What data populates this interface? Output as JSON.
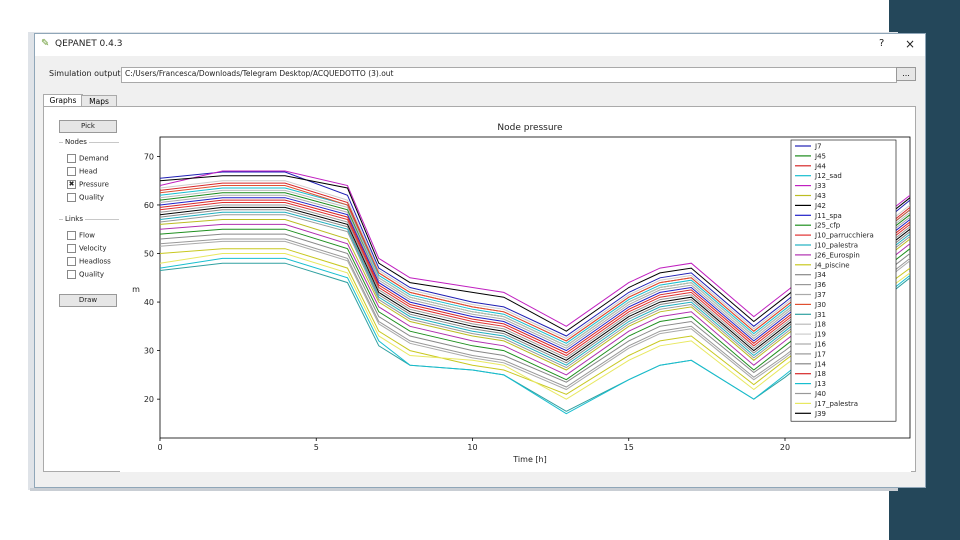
{
  "window": {
    "title": "QEPANET 0.4.3",
    "help_label": "?",
    "close_label": "×"
  },
  "output_file": {
    "label": "Simulation output file:",
    "value": "C:/Users/Francesca/Downloads/Telegram Desktop/ACQUEDOTTO (3).out",
    "browse_label": "..."
  },
  "tabs": [
    {
      "label": "Graphs"
    },
    {
      "label": "Maps"
    }
  ],
  "left_panel": {
    "pick_label": "Pick",
    "nodes_label": "Nodes",
    "node_options": [
      {
        "label": "Demand",
        "checked": false
      },
      {
        "label": "Head",
        "checked": false
      },
      {
        "label": "Pressure",
        "checked": true
      },
      {
        "label": "Quality",
        "checked": false
      }
    ],
    "links_label": "Links",
    "link_options": [
      {
        "label": "Flow",
        "checked": false
      },
      {
        "label": "Velocity",
        "checked": false
      },
      {
        "label": "Headloss",
        "checked": false
      },
      {
        "label": "Quality",
        "checked": false
      }
    ],
    "draw_label": "Draw"
  },
  "chart_data": {
    "type": "line",
    "title": "Node pressure",
    "xlabel": "Time [h]",
    "ylabel": "m",
    "xlim": [
      0,
      24
    ],
    "ylim": [
      12,
      74
    ],
    "xticks": [
      0,
      5,
      10,
      15,
      20
    ],
    "yticks": [
      20,
      30,
      40,
      50,
      60,
      70
    ],
    "grid": false,
    "legend_position": "right",
    "x": [
      0,
      2,
      4,
      6,
      7,
      8,
      10,
      11,
      13,
      15,
      16,
      17,
      19,
      20,
      24
    ],
    "series": [
      {
        "name": "J7",
        "color": "#1f1fb4",
        "values": [
          65.5,
          66.8,
          66.8,
          62,
          47,
          43,
          40,
          39,
          33,
          42,
          45,
          46,
          35,
          40,
          61
        ]
      },
      {
        "name": "J45",
        "color": "#1a8a1a",
        "values": [
          61,
          62.5,
          62.5,
          59,
          45,
          41,
          38,
          37,
          31,
          40,
          43,
          44,
          33,
          38,
          58
        ]
      },
      {
        "name": "J44",
        "color": "#d62728",
        "values": [
          63,
          64.5,
          64.5,
          60.5,
          46,
          42,
          39,
          38,
          32,
          41,
          44,
          45,
          34,
          39,
          59.5
        ]
      },
      {
        "name": "J12_sad",
        "color": "#17becf",
        "values": [
          62,
          63.5,
          63.5,
          60,
          45.5,
          41.5,
          38.5,
          37.5,
          31.5,
          40.5,
          43.5,
          44.5,
          33.5,
          38.5,
          59
        ]
      },
      {
        "name": "J33",
        "color": "#c020c0",
        "values": [
          64,
          67,
          67,
          64,
          49,
          45,
          43,
          42,
          35,
          44,
          47,
          48,
          37,
          42,
          62
        ]
      },
      {
        "name": "J43",
        "color": "#bcbd22",
        "values": [
          56,
          57,
          57,
          53,
          40,
          36,
          33,
          32,
          26,
          35,
          38,
          39,
          28,
          33,
          53
        ]
      },
      {
        "name": "J42",
        "color": "#000000",
        "values": [
          58,
          59.5,
          59.5,
          56,
          42,
          38,
          35,
          34,
          28,
          37,
          40,
          41,
          30,
          35,
          55
        ]
      },
      {
        "name": "J11_spa",
        "color": "#2020c8",
        "values": [
          60,
          61.5,
          61.5,
          58,
          44,
          40,
          37,
          36,
          30,
          39,
          42,
          43,
          32,
          37,
          57
        ]
      },
      {
        "name": "J25_cfp",
        "color": "#1f8f1f",
        "values": [
          54,
          55,
          55,
          51,
          38,
          34,
          31,
          30,
          24,
          33,
          36,
          37,
          26,
          31,
          51
        ]
      },
      {
        "name": "J10_parrucchiera",
        "color": "#e03030",
        "values": [
          59,
          60.5,
          60.5,
          57,
          43,
          39,
          36,
          35,
          29,
          38,
          41,
          42,
          31,
          36,
          56
        ]
      },
      {
        "name": "J10_palestra",
        "color": "#20b0c0",
        "values": [
          57,
          58.5,
          58.5,
          55,
          41,
          37,
          34,
          33,
          27,
          36,
          39,
          40,
          29,
          34,
          54
        ]
      },
      {
        "name": "J26_Eurospin",
        "color": "#b030b0",
        "values": [
          55,
          56,
          56,
          52,
          39,
          35,
          32,
          31,
          25,
          34,
          37,
          38,
          27,
          32,
          52
        ]
      },
      {
        "name": "J4_piscine",
        "color": "#c8c820",
        "values": [
          50,
          51,
          51,
          47,
          34,
          30,
          27,
          26,
          21,
          29,
          32,
          33,
          23,
          28,
          47
        ]
      },
      {
        "name": "J34",
        "color": "#888888",
        "values": [
          53,
          54,
          54,
          50,
          37,
          33,
          30,
          29,
          23.5,
          32,
          35,
          36,
          25.5,
          30,
          50
        ]
      },
      {
        "name": "J36",
        "color": "#999999",
        "values": [
          52,
          53,
          53,
          49,
          36,
          32,
          29,
          28,
          22.5,
          31,
          34,
          35,
          24.5,
          29,
          49
        ]
      },
      {
        "name": "J37",
        "color": "#aaaaaa",
        "values": [
          51.5,
          52.5,
          52.5,
          48.5,
          35.5,
          31.5,
          28.5,
          27.5,
          22,
          30.5,
          33.5,
          34.5,
          24,
          28.5,
          48.5
        ]
      },
      {
        "name": "J30",
        "color": "#e05030",
        "values": [
          62.5,
          64,
          64,
          60,
          46,
          42,
          39,
          38,
          32,
          41,
          44,
          45,
          34,
          39,
          59
        ]
      },
      {
        "name": "J31",
        "color": "#30a0a0",
        "values": [
          46.5,
          48,
          48,
          44,
          31,
          27,
          26,
          25,
          17.5,
          24,
          27,
          28,
          20,
          24.5,
          45
        ]
      },
      {
        "name": "J18",
        "color": "#bbbbbb",
        "values": [
          61.5,
          63,
          63,
          59.5,
          45,
          41,
          38,
          37,
          31,
          40,
          43,
          44,
          33,
          38,
          58.5
        ]
      },
      {
        "name": "J19",
        "color": "#cccccc",
        "values": [
          63.5,
          65,
          65,
          61,
          46.5,
          42.5,
          39.5,
          38.5,
          32.5,
          41.5,
          44.5,
          45.5,
          34.5,
          39.5,
          60
        ]
      },
      {
        "name": "J16",
        "color": "#aaaaaa",
        "values": [
          60.5,
          62,
          62,
          58.5,
          44.5,
          40.5,
          37.5,
          36.5,
          30.5,
          39.5,
          42.5,
          43.5,
          32.5,
          37.5,
          57.5
        ]
      },
      {
        "name": "J17",
        "color": "#999999",
        "values": [
          58.5,
          60,
          60,
          56.5,
          42.5,
          38.5,
          35.5,
          34.5,
          28.5,
          37.5,
          40.5,
          41.5,
          30.5,
          35.5,
          55.5
        ]
      },
      {
        "name": "J14",
        "color": "#888888",
        "values": [
          57.5,
          59,
          59,
          55.5,
          41.5,
          37.5,
          34.5,
          33.5,
          27.5,
          36.5,
          39.5,
          40.5,
          29.5,
          34.5,
          54.5
        ]
      },
      {
        "name": "J18",
        "color": "#d62728",
        "values": [
          59.5,
          61,
          61,
          57.5,
          43.5,
          39.5,
          36.5,
          35.5,
          29.5,
          38.5,
          41.5,
          42.5,
          31.5,
          36.5,
          56.5
        ]
      },
      {
        "name": "J13",
        "color": "#17becf",
        "values": [
          47,
          49,
          49,
          45,
          32,
          27,
          26,
          25,
          17,
          24,
          27,
          28,
          20,
          25,
          45.5
        ]
      },
      {
        "name": "J40",
        "color": "#999999",
        "values": [
          56.5,
          58,
          58,
          54.5,
          40.5,
          36.5,
          33.5,
          32.5,
          26.5,
          35.5,
          38.5,
          39.5,
          28.5,
          33.5,
          53.5
        ]
      },
      {
        "name": "J17_palestra",
        "color": "#e8e860",
        "values": [
          48,
          50,
          50,
          46,
          33,
          29,
          28,
          27,
          20,
          28,
          31,
          32,
          22,
          27,
          46
        ]
      },
      {
        "name": "J39",
        "color": "#000000",
        "values": [
          65,
          66,
          66,
          63.5,
          48,
          44,
          42,
          41,
          34,
          43,
          46,
          47,
          36,
          41,
          61.5
        ]
      }
    ]
  }
}
